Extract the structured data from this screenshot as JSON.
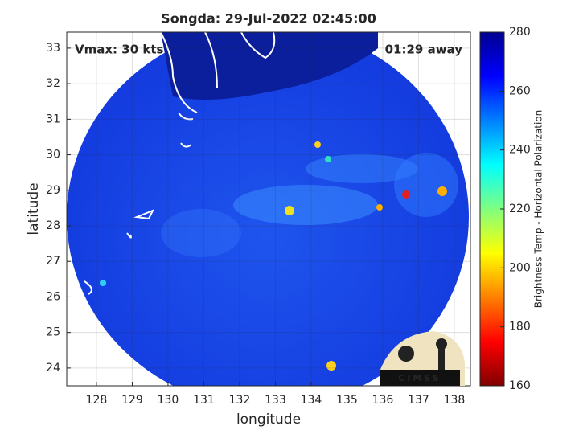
{
  "chart_data": {
    "type": "swath-map",
    "title": "Songda: 29-Jul-2022 02:45:00",
    "annotations": [
      "Vmax: 30 kts",
      "01:29 away"
    ],
    "xlabel": "longitude",
    "ylabel": "latitude",
    "xlim": [
      127.17,
      138.45
    ],
    "xticks": [
      128,
      129,
      130,
      131,
      132,
      133,
      134,
      135,
      136,
      137,
      138
    ],
    "ylim": [
      23.5,
      33.45
    ],
    "yticks": [
      24,
      25,
      26,
      27,
      28,
      29,
      30,
      31,
      32,
      33
    ],
    "grid": true,
    "colorbar": {
      "label": "Brightness Temp - Horizontal Polarization",
      "colormap": "jet",
      "lim": [
        160,
        280
      ],
      "ticks": [
        160,
        180,
        200,
        220,
        240,
        260,
        280
      ]
    },
    "logo": "CIMSS"
  }
}
